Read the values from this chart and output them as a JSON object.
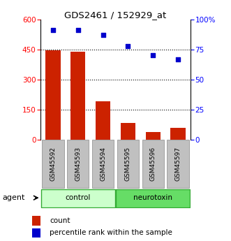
{
  "title": "GDS2461 / 152929_at",
  "samples": [
    "GSM45592",
    "GSM45593",
    "GSM45594",
    "GSM45595",
    "GSM45596",
    "GSM45597"
  ],
  "counts": [
    447,
    437,
    193,
    85,
    40,
    60
  ],
  "percentiles": [
    91,
    91,
    87,
    78,
    70,
    67
  ],
  "groups": [
    {
      "label": "control",
      "indices": [
        0,
        1,
        2
      ],
      "color": "#ccffcc"
    },
    {
      "label": "neurotoxin",
      "indices": [
        3,
        4,
        5
      ],
      "color": "#66dd66"
    }
  ],
  "bar_color": "#cc2200",
  "dot_color": "#0000cc",
  "left_ylim": [
    0,
    600
  ],
  "right_ylim": [
    0,
    100
  ],
  "left_yticks": [
    0,
    150,
    300,
    450,
    600
  ],
  "right_yticks": [
    0,
    25,
    50,
    75,
    100
  ],
  "right_yticklabels": [
    "0",
    "25",
    "50",
    "75",
    "100%"
  ],
  "grid_values": [
    150,
    300,
    450
  ],
  "legend_count_label": "count",
  "legend_percentile_label": "percentile rank within the sample",
  "agent_label": "agent",
  "background_color": "#ffffff",
  "bar_width": 0.6
}
